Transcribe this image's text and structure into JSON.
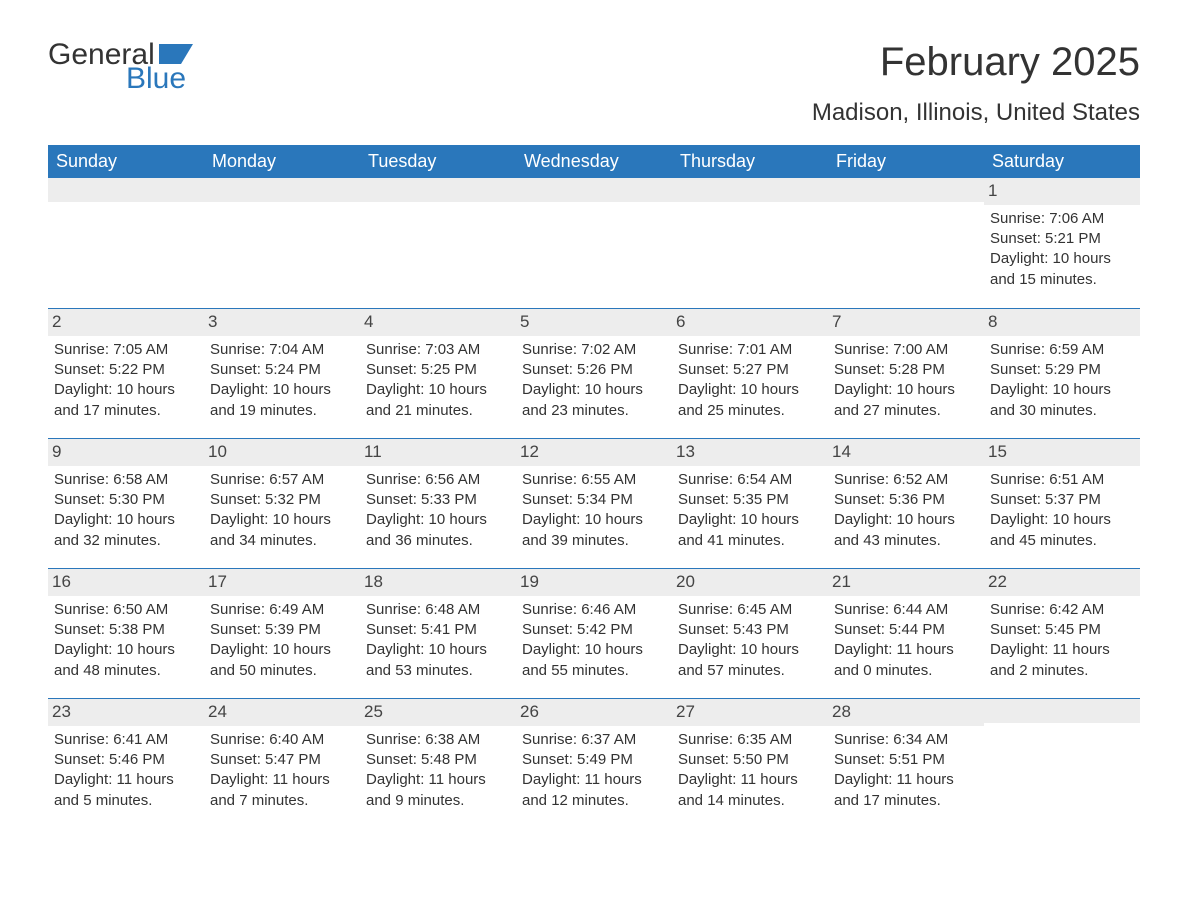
{
  "logo": {
    "text_top": "General",
    "text_bottom": "Blue",
    "flag_color": "#2a77bb",
    "top_color": "#333333",
    "bottom_color": "#2a77bb"
  },
  "header": {
    "month_title": "February 2025",
    "location": "Madison, Illinois, United States"
  },
  "colors": {
    "header_bg": "#2a77bb",
    "header_text": "#ffffff",
    "daynum_bg": "#ededed",
    "text": "#333333",
    "row_border": "#2a77bb",
    "background": "#ffffff"
  },
  "typography": {
    "month_title_fontsize": 40,
    "location_fontsize": 24,
    "day_header_fontsize": 18,
    "day_number_fontsize": 17,
    "body_fontsize": 15,
    "font_family": "Arial"
  },
  "calendar": {
    "type": "table",
    "day_headers": [
      "Sunday",
      "Monday",
      "Tuesday",
      "Wednesday",
      "Thursday",
      "Friday",
      "Saturday"
    ],
    "weeks": [
      [
        {
          "day": "",
          "sunrise": "",
          "sunset": "",
          "daylight": ""
        },
        {
          "day": "",
          "sunrise": "",
          "sunset": "",
          "daylight": ""
        },
        {
          "day": "",
          "sunrise": "",
          "sunset": "",
          "daylight": ""
        },
        {
          "day": "",
          "sunrise": "",
          "sunset": "",
          "daylight": ""
        },
        {
          "day": "",
          "sunrise": "",
          "sunset": "",
          "daylight": ""
        },
        {
          "day": "",
          "sunrise": "",
          "sunset": "",
          "daylight": ""
        },
        {
          "day": "1",
          "sunrise": "Sunrise: 7:06 AM",
          "sunset": "Sunset: 5:21 PM",
          "daylight": "Daylight: 10 hours and 15 minutes."
        }
      ],
      [
        {
          "day": "2",
          "sunrise": "Sunrise: 7:05 AM",
          "sunset": "Sunset: 5:22 PM",
          "daylight": "Daylight: 10 hours and 17 minutes."
        },
        {
          "day": "3",
          "sunrise": "Sunrise: 7:04 AM",
          "sunset": "Sunset: 5:24 PM",
          "daylight": "Daylight: 10 hours and 19 minutes."
        },
        {
          "day": "4",
          "sunrise": "Sunrise: 7:03 AM",
          "sunset": "Sunset: 5:25 PM",
          "daylight": "Daylight: 10 hours and 21 minutes."
        },
        {
          "day": "5",
          "sunrise": "Sunrise: 7:02 AM",
          "sunset": "Sunset: 5:26 PM",
          "daylight": "Daylight: 10 hours and 23 minutes."
        },
        {
          "day": "6",
          "sunrise": "Sunrise: 7:01 AM",
          "sunset": "Sunset: 5:27 PM",
          "daylight": "Daylight: 10 hours and 25 minutes."
        },
        {
          "day": "7",
          "sunrise": "Sunrise: 7:00 AM",
          "sunset": "Sunset: 5:28 PM",
          "daylight": "Daylight: 10 hours and 27 minutes."
        },
        {
          "day": "8",
          "sunrise": "Sunrise: 6:59 AM",
          "sunset": "Sunset: 5:29 PM",
          "daylight": "Daylight: 10 hours and 30 minutes."
        }
      ],
      [
        {
          "day": "9",
          "sunrise": "Sunrise: 6:58 AM",
          "sunset": "Sunset: 5:30 PM",
          "daylight": "Daylight: 10 hours and 32 minutes."
        },
        {
          "day": "10",
          "sunrise": "Sunrise: 6:57 AM",
          "sunset": "Sunset: 5:32 PM",
          "daylight": "Daylight: 10 hours and 34 minutes."
        },
        {
          "day": "11",
          "sunrise": "Sunrise: 6:56 AM",
          "sunset": "Sunset: 5:33 PM",
          "daylight": "Daylight: 10 hours and 36 minutes."
        },
        {
          "day": "12",
          "sunrise": "Sunrise: 6:55 AM",
          "sunset": "Sunset: 5:34 PM",
          "daylight": "Daylight: 10 hours and 39 minutes."
        },
        {
          "day": "13",
          "sunrise": "Sunrise: 6:54 AM",
          "sunset": "Sunset: 5:35 PM",
          "daylight": "Daylight: 10 hours and 41 minutes."
        },
        {
          "day": "14",
          "sunrise": "Sunrise: 6:52 AM",
          "sunset": "Sunset: 5:36 PM",
          "daylight": "Daylight: 10 hours and 43 minutes."
        },
        {
          "day": "15",
          "sunrise": "Sunrise: 6:51 AM",
          "sunset": "Sunset: 5:37 PM",
          "daylight": "Daylight: 10 hours and 45 minutes."
        }
      ],
      [
        {
          "day": "16",
          "sunrise": "Sunrise: 6:50 AM",
          "sunset": "Sunset: 5:38 PM",
          "daylight": "Daylight: 10 hours and 48 minutes."
        },
        {
          "day": "17",
          "sunrise": "Sunrise: 6:49 AM",
          "sunset": "Sunset: 5:39 PM",
          "daylight": "Daylight: 10 hours and 50 minutes."
        },
        {
          "day": "18",
          "sunrise": "Sunrise: 6:48 AM",
          "sunset": "Sunset: 5:41 PM",
          "daylight": "Daylight: 10 hours and 53 minutes."
        },
        {
          "day": "19",
          "sunrise": "Sunrise: 6:46 AM",
          "sunset": "Sunset: 5:42 PM",
          "daylight": "Daylight: 10 hours and 55 minutes."
        },
        {
          "day": "20",
          "sunrise": "Sunrise: 6:45 AM",
          "sunset": "Sunset: 5:43 PM",
          "daylight": "Daylight: 10 hours and 57 minutes."
        },
        {
          "day": "21",
          "sunrise": "Sunrise: 6:44 AM",
          "sunset": "Sunset: 5:44 PM",
          "daylight": "Daylight: 11 hours and 0 minutes."
        },
        {
          "day": "22",
          "sunrise": "Sunrise: 6:42 AM",
          "sunset": "Sunset: 5:45 PM",
          "daylight": "Daylight: 11 hours and 2 minutes."
        }
      ],
      [
        {
          "day": "23",
          "sunrise": "Sunrise: 6:41 AM",
          "sunset": "Sunset: 5:46 PM",
          "daylight": "Daylight: 11 hours and 5 minutes."
        },
        {
          "day": "24",
          "sunrise": "Sunrise: 6:40 AM",
          "sunset": "Sunset: 5:47 PM",
          "daylight": "Daylight: 11 hours and 7 minutes."
        },
        {
          "day": "25",
          "sunrise": "Sunrise: 6:38 AM",
          "sunset": "Sunset: 5:48 PM",
          "daylight": "Daylight: 11 hours and 9 minutes."
        },
        {
          "day": "26",
          "sunrise": "Sunrise: 6:37 AM",
          "sunset": "Sunset: 5:49 PM",
          "daylight": "Daylight: 11 hours and 12 minutes."
        },
        {
          "day": "27",
          "sunrise": "Sunrise: 6:35 AM",
          "sunset": "Sunset: 5:50 PM",
          "daylight": "Daylight: 11 hours and 14 minutes."
        },
        {
          "day": "28",
          "sunrise": "Sunrise: 6:34 AM",
          "sunset": "Sunset: 5:51 PM",
          "daylight": "Daylight: 11 hours and 17 minutes."
        },
        {
          "day": "",
          "sunrise": "",
          "sunset": "",
          "daylight": ""
        }
      ]
    ]
  }
}
